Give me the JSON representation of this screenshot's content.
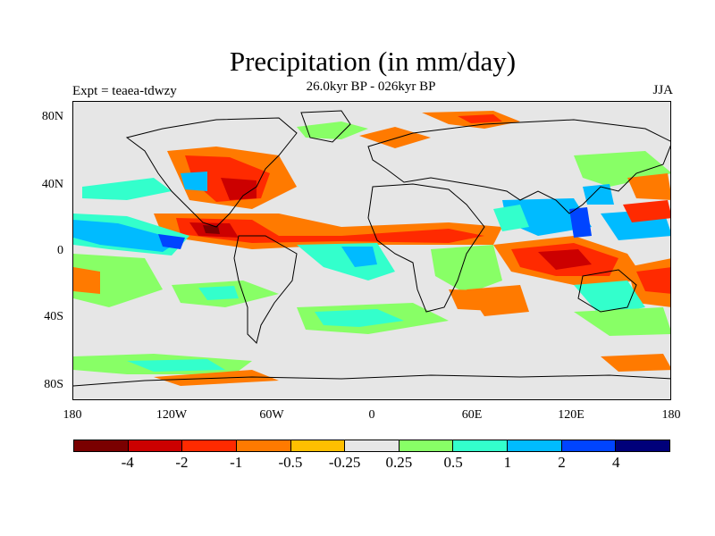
{
  "title": "Precipitation (in mm/day)",
  "subtitle": "26.0kyr BP - 026kyr BP",
  "experiment_label": "Expt = teaea-tdwzy",
  "season": "JJA",
  "lat_labels": [
    "80N",
    "40N",
    "0",
    "40S",
    "80S"
  ],
  "lon_labels": [
    "180",
    "120W",
    "60W",
    "0",
    "60E",
    "120E",
    "180"
  ],
  "colorbar": {
    "colors": [
      "#7a0000",
      "#cc0000",
      "#ff2a00",
      "#ff7a00",
      "#ffbf00",
      "#e6e6e6",
      "#88ff66",
      "#33ffcc",
      "#00bbff",
      "#0044ff",
      "#00007a"
    ],
    "labels": [
      "-4",
      "-2",
      "-1",
      "-0.5",
      "-0.25",
      "0.25",
      "0.5",
      "1",
      "2",
      "4"
    ]
  },
  "colors": {
    "background": "#e6e6e6",
    "coastline": "#000000"
  }
}
